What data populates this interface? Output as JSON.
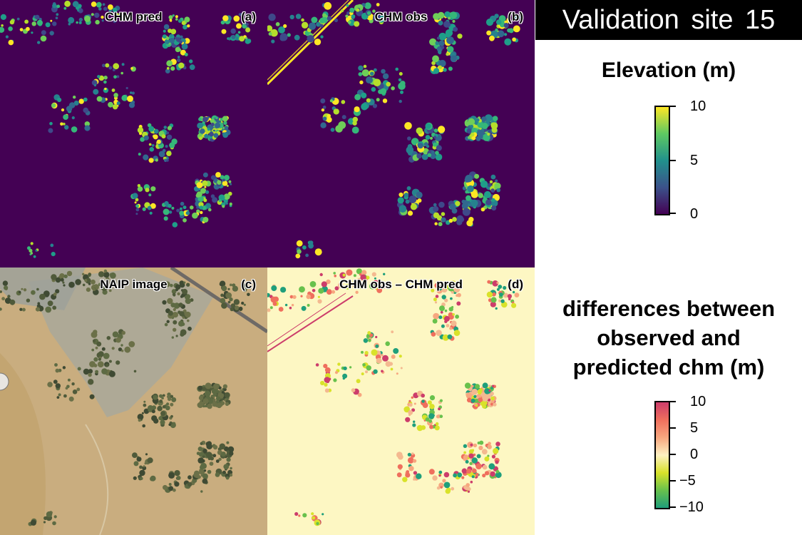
{
  "header": {
    "title": "Validation site  15"
  },
  "panels": {
    "a": {
      "title": "CHM pred",
      "letter": "(a)"
    },
    "b": {
      "title": "CHM obs",
      "letter": "(b)"
    },
    "c": {
      "title": "NAIP image",
      "letter": "(c)"
    },
    "d": {
      "title": "CHM obs – CHM pred",
      "letter": "(d)"
    }
  },
  "legend_elevation": {
    "title": "Elevation (m)",
    "ticks": [
      "10",
      "5",
      "0"
    ],
    "colors": [
      "#fde725",
      "#5ec962",
      "#21918c",
      "#3b528b",
      "#440154"
    ]
  },
  "legend_diff": {
    "title_lines": [
      "differences between",
      "observed and",
      "predicted chm (m)"
    ],
    "ticks": [
      "10",
      "5",
      "0",
      "−5",
      "−10"
    ],
    "colors": [
      "#cc3d6b",
      "#ef6f5d",
      "#f7a77f",
      "#fdf0c2",
      "#d9e22a",
      "#68c14c",
      "#1f9f7b"
    ]
  }
}
